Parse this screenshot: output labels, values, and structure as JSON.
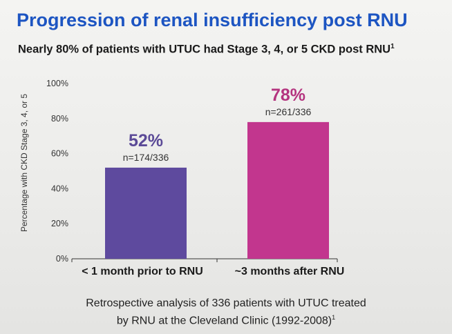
{
  "header": {
    "title": "Progression of renal insufficiency post RNU",
    "subtitle": "Nearly 80% of patients with UTUC had Stage 3, 4, or 5 CKD post RNU",
    "subtitle_superscript": "1"
  },
  "chart_data": {
    "type": "bar",
    "title": "",
    "xlabel": "",
    "ylabel": "Percentage with CKD Stage 3, 4, or 5",
    "ylim": [
      0,
      100
    ],
    "yticks": [
      "0%",
      "20%",
      "40%",
      "60%",
      "80%",
      "100%"
    ],
    "ytick_values": [
      0,
      20,
      40,
      60,
      80,
      100
    ],
    "categories": [
      "< 1 month prior to RNU",
      "~3 months after RNU"
    ],
    "values": [
      52,
      78
    ],
    "value_labels": [
      "52%",
      "78%"
    ],
    "n_labels": [
      "n=174/336",
      "n=261/336"
    ],
    "bar_colors": [
      "#5e4a9e",
      "#c2368e"
    ],
    "value_label_colors": [
      "#5b4a97",
      "#b4347f"
    ],
    "grid": false
  },
  "footnote": {
    "line1": "Retrospective analysis of 336 patients with UTUC treated",
    "line2": "by RNU at the Cleveland Clinic (1992-2008)",
    "superscript": "1"
  }
}
